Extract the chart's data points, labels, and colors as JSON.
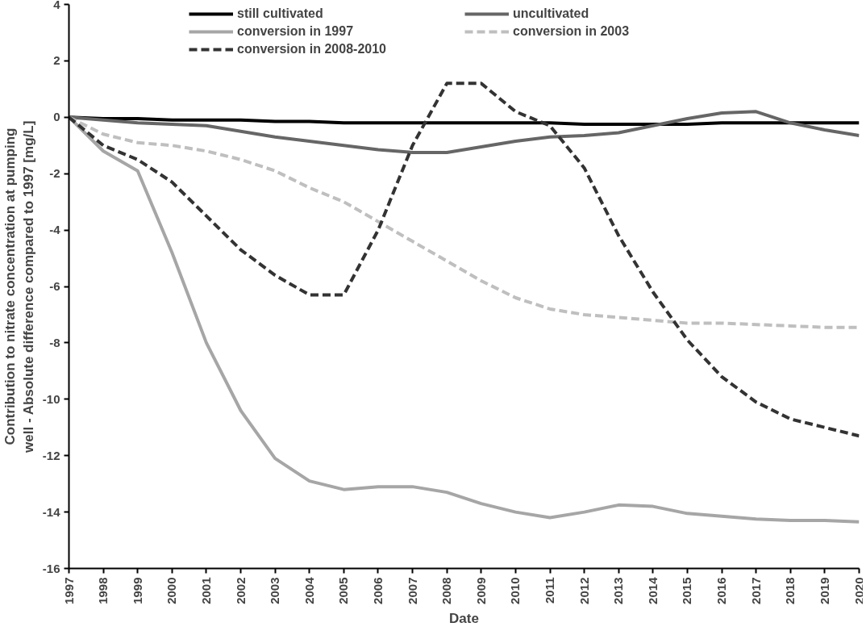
{
  "chart_data": {
    "type": "line",
    "xlabel": "Date",
    "ylabel": "Contribution to nitrate concentration at pumping well - Absolute difference compared to 1997 [mg/L]",
    "x": [
      1997,
      1998,
      1999,
      2000,
      2001,
      2002,
      2003,
      2004,
      2005,
      2006,
      2007,
      2008,
      2009,
      2010,
      2011,
      2012,
      2013,
      2014,
      2015,
      2016,
      2017,
      2018,
      2019,
      2020
    ],
    "xlim": [
      1997,
      2020
    ],
    "xticks": [
      1997,
      1998,
      1999,
      2000,
      2001,
      2002,
      2003,
      2004,
      2005,
      2006,
      2007,
      2008,
      2009,
      2010,
      2011,
      2012,
      2013,
      2014,
      2015,
      2016,
      2017,
      2018,
      2019,
      2020
    ],
    "ylim": [
      -16,
      4
    ],
    "yticks": [
      -16,
      -14,
      -12,
      -10,
      -8,
      -6,
      -4,
      -2,
      0,
      2,
      4
    ],
    "grid": false,
    "legend": "top",
    "series": [
      {
        "name": "still cultivated",
        "color": "#000000",
        "line_style": "solid",
        "values": [
          0,
          -0.05,
          -0.05,
          -0.1,
          -0.1,
          -0.1,
          -0.15,
          -0.15,
          -0.2,
          -0.2,
          -0.2,
          -0.2,
          -0.2,
          -0.2,
          -0.2,
          -0.25,
          -0.25,
          -0.25,
          -0.25,
          -0.2,
          -0.2,
          -0.2,
          -0.2,
          -0.2
        ]
      },
      {
        "name": "uncultivated",
        "color": "#666666",
        "line_style": "solid",
        "values": [
          0,
          -0.1,
          -0.2,
          -0.25,
          -0.3,
          -0.5,
          -0.7,
          -0.85,
          -1.0,
          -1.15,
          -1.25,
          -1.25,
          -1.05,
          -0.85,
          -0.7,
          -0.65,
          -0.55,
          -0.3,
          -0.05,
          0.15,
          0.2,
          -0.2,
          -0.45,
          -0.65
        ]
      },
      {
        "name": "conversion in 1997",
        "color": "#a6a6a6",
        "line_style": "solid",
        "values": [
          0,
          -1.2,
          -1.9,
          -4.8,
          -8.0,
          -10.4,
          -12.1,
          -12.9,
          -13.2,
          -13.1,
          -13.1,
          -13.3,
          -13.7,
          -14.0,
          -14.2,
          -14.0,
          -13.75,
          -13.8,
          -14.05,
          -14.15,
          -14.25,
          -14.3,
          -14.3,
          -14.35
        ]
      },
      {
        "name": "conversion in 2003",
        "color": "#bfbfbf",
        "line_style": "dashed",
        "values": [
          0,
          -0.6,
          -0.9,
          -1.0,
          -1.2,
          -1.5,
          -1.9,
          -2.5,
          -3.0,
          -3.7,
          -4.4,
          -5.1,
          -5.8,
          -6.4,
          -6.8,
          -7.0,
          -7.1,
          -7.2,
          -7.3,
          -7.3,
          -7.35,
          -7.4,
          -7.45,
          -7.45
        ]
      },
      {
        "name": "conversion in 2008-2010",
        "color": "#333333",
        "line_style": "dashed",
        "values": [
          0,
          -1.0,
          -1.5,
          -2.3,
          -3.5,
          -4.7,
          -5.6,
          -6.3,
          -6.3,
          -4.0,
          -1.0,
          1.2,
          1.2,
          0.2,
          -0.3,
          -1.8,
          -4.2,
          -6.2,
          -7.9,
          -9.2,
          -10.1,
          -10.7,
          -11.0,
          -11.3
        ]
      }
    ]
  }
}
